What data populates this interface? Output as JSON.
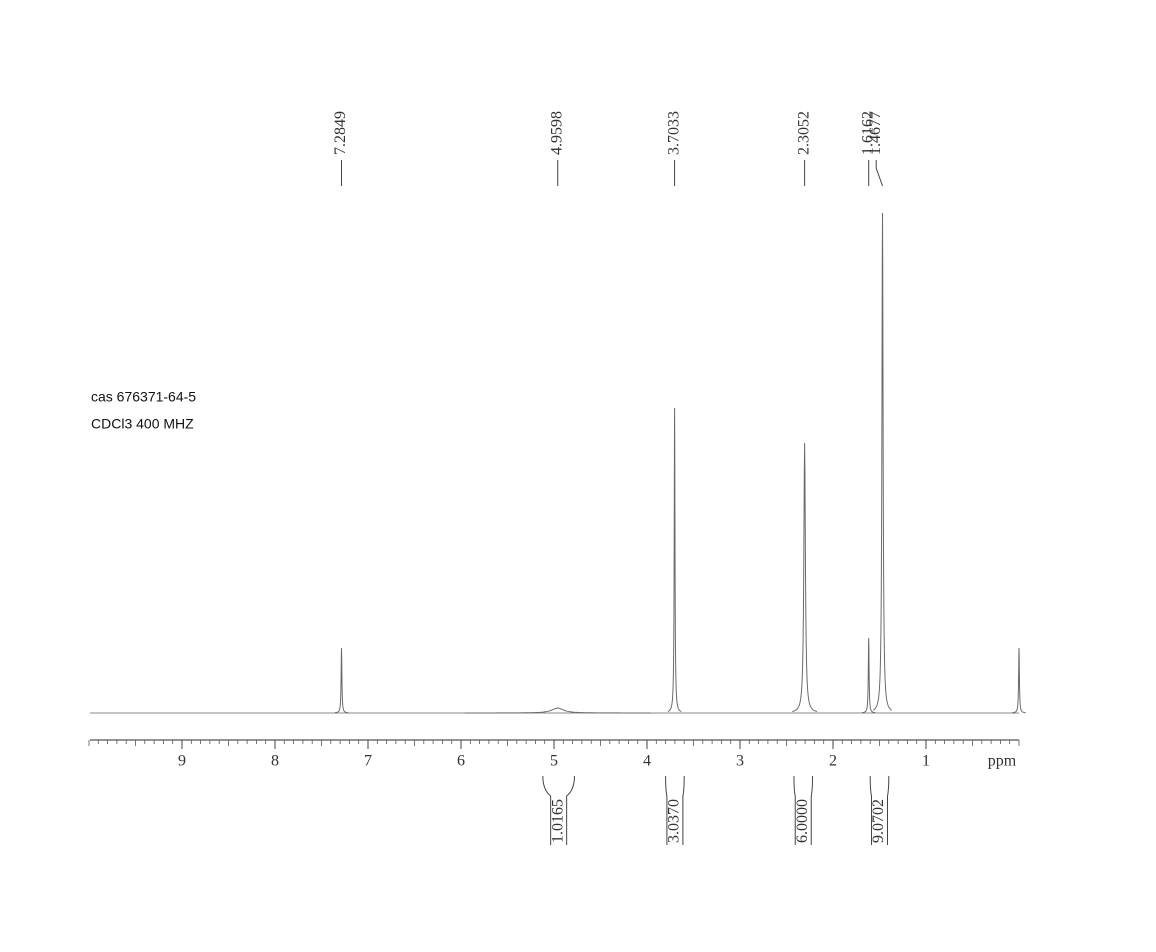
{
  "chart_data": {
    "type": "nmr",
    "annotations": [
      "cas 676371-64-5",
      "CDCl3  400 MHZ"
    ],
    "x_label": "ppm",
    "xlim": [
      10,
      0
    ],
    "xticks": [
      9,
      8,
      7,
      6,
      5,
      4,
      3,
      2,
      1
    ],
    "xminor": 0.1,
    "ylim": [
      0,
      100
    ],
    "color": "#6a6a6a",
    "peaks": {
      "x": [
        7.2849,
        4.9598,
        3.7033,
        2.3052,
        1.6162,
        1.4677,
        0
      ],
      "values": [
        13,
        1,
        61,
        54,
        15,
        100,
        13
      ],
      "widths": [
        0.01,
        0.15,
        0.01,
        0.02,
        0.01,
        0.015,
        0.01
      ],
      "x_labels": [
        "7.2849",
        "4.9598",
        "3.7033",
        "2.3052",
        "1.6162",
        "1.4677",
        null
      ]
    },
    "integrals": {
      "ranges": [
        [
          5.12,
          4.78
        ],
        [
          3.8,
          3.6
        ],
        [
          2.42,
          2.22
        ],
        [
          1.6,
          1.4
        ]
      ],
      "values": [
        1.0165,
        3.037,
        6,
        9.0702
      ],
      "value_labels": [
        "1.0165",
        "3.0370",
        "6.0000",
        "9.0702"
      ]
    }
  }
}
